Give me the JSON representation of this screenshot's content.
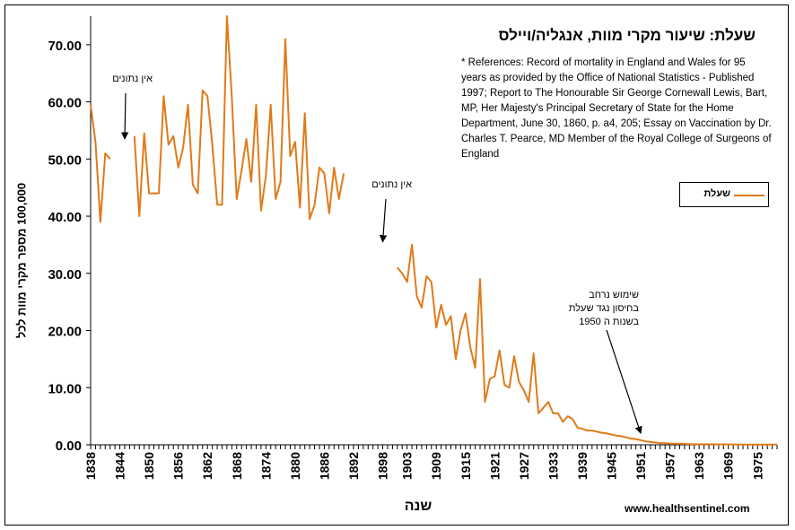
{
  "chart_data": {
    "type": "line",
    "title": "שעלת: שיעור מקרי מוות, אנגליה/ויילס",
    "xlabel": "שנה",
    "ylabel": "100,000 מספר מקרי מוות לכל",
    "xlim": [
      1838,
      1979
    ],
    "ylim": [
      0,
      75
    ],
    "x_ticks": [
      "1838",
      "1844",
      "1850",
      "1856",
      "1862",
      "1868",
      "1874",
      "1880",
      "1886",
      "1892",
      "1898",
      "1903",
      "1909",
      "1915",
      "1921",
      "1927",
      "1933",
      "1939",
      "1945",
      "1951",
      "1957",
      "1963",
      "1969",
      "1975"
    ],
    "y_ticks": [
      "0.00",
      "10.00",
      "20.00",
      "30.00",
      "40.00",
      "50.00",
      "60.00",
      "70.00"
    ],
    "grid": false,
    "legend": "right",
    "series": [
      {
        "name": "שעלת",
        "color": "#e07a1a",
        "segments": [
          [
            [
              1838,
              59.5
            ],
            [
              1839,
              53.0
            ],
            [
              1840,
              39.0
            ],
            [
              1841,
              51.0
            ],
            [
              1842,
              50.0
            ]
          ],
          [
            [
              1847,
              54.0
            ],
            [
              1848,
              40.0
            ],
            [
              1849,
              54.5
            ],
            [
              1850,
              44.0
            ],
            [
              1851,
              44.0
            ],
            [
              1852,
              44.0
            ],
            [
              1853,
              61.0
            ],
            [
              1854,
              52.5
            ],
            [
              1855,
              54.0
            ],
            [
              1856,
              48.5
            ],
            [
              1857,
              52.0
            ],
            [
              1858,
              59.5
            ],
            [
              1859,
              45.5
            ],
            [
              1860,
              44.0
            ],
            [
              1861,
              62.0
            ],
            [
              1862,
              61.0
            ],
            [
              1863,
              52.5
            ],
            [
              1864,
              42.0
            ],
            [
              1865,
              42.0
            ],
            [
              1866,
              75.0
            ],
            [
              1867,
              61.0
            ],
            [
              1868,
              43.0
            ],
            [
              1869,
              48.0
            ],
            [
              1870,
              53.5
            ],
            [
              1871,
              46.0
            ],
            [
              1872,
              59.5
            ],
            [
              1873,
              41.0
            ],
            [
              1874,
              47.0
            ],
            [
              1875,
              59.5
            ],
            [
              1876,
              43.0
            ],
            [
              1877,
              46.0
            ],
            [
              1878,
              71.0
            ],
            [
              1879,
              50.5
            ],
            [
              1880,
              53.0
            ],
            [
              1881,
              41.5
            ],
            [
              1882,
              58.0
            ],
            [
              1883,
              39.5
            ],
            [
              1884,
              42.0
            ],
            [
              1885,
              48.5
            ],
            [
              1886,
              47.5
            ],
            [
              1887,
              40.5
            ],
            [
              1888,
              48.5
            ],
            [
              1889,
              43.0
            ],
            [
              1890,
              47.5
            ]
          ],
          [
            [
              1901,
              31.0
            ],
            [
              1902,
              30.0
            ],
            [
              1903,
              28.5
            ],
            [
              1904,
              35.0
            ],
            [
              1905,
              26.0
            ],
            [
              1906,
              24.0
            ],
            [
              1907,
              29.5
            ],
            [
              1908,
              28.5
            ],
            [
              1909,
              20.5
            ],
            [
              1910,
              24.5
            ],
            [
              1911,
              21.0
            ],
            [
              1912,
              22.5
            ],
            [
              1913,
              15.0
            ],
            [
              1914,
              20.0
            ],
            [
              1915,
              23.0
            ],
            [
              1916,
              17.0
            ],
            [
              1917,
              13.5
            ],
            [
              1918,
              29.0
            ],
            [
              1919,
              7.5
            ],
            [
              1920,
              11.5
            ],
            [
              1921,
              12.0
            ],
            [
              1922,
              16.5
            ],
            [
              1923,
              10.5
            ],
            [
              1924,
              10.0
            ],
            [
              1925,
              15.5
            ],
            [
              1926,
              11.0
            ],
            [
              1927,
              9.5
            ],
            [
              1928,
              7.5
            ],
            [
              1929,
              16.0
            ],
            [
              1930,
              5.5
            ],
            [
              1931,
              6.5
            ],
            [
              1932,
              7.5
            ],
            [
              1933,
              5.5
            ],
            [
              1934,
              5.5
            ],
            [
              1935,
              4.0
            ],
            [
              1936,
              5.0
            ],
            [
              1937,
              4.5
            ],
            [
              1938,
              3.0
            ],
            [
              1939,
              2.8
            ],
            [
              1940,
              2.5
            ],
            [
              1941,
              2.5
            ],
            [
              1942,
              2.3
            ],
            [
              1943,
              2.1
            ],
            [
              1944,
              2.0
            ],
            [
              1945,
              1.8
            ],
            [
              1946,
              1.6
            ],
            [
              1947,
              1.5
            ],
            [
              1948,
              1.3
            ],
            [
              1949,
              1.1
            ],
            [
              1950,
              1.0
            ],
            [
              1951,
              0.8
            ],
            [
              1952,
              0.6
            ],
            [
              1953,
              0.5
            ],
            [
              1954,
              0.4
            ],
            [
              1955,
              0.3
            ],
            [
              1956,
              0.3
            ],
            [
              1957,
              0.2
            ],
            [
              1958,
              0.2
            ],
            [
              1959,
              0.2
            ],
            [
              1960,
              0.15
            ],
            [
              1961,
              0.12
            ],
            [
              1962,
              0.1
            ],
            [
              1963,
              0.1
            ],
            [
              1965,
              0.1
            ],
            [
              1967,
              0.08
            ],
            [
              1970,
              0.06
            ],
            [
              1973,
              0.05
            ],
            [
              1976,
              0.04
            ],
            [
              1979,
              0.03
            ]
          ]
        ]
      }
    ],
    "annotations": [
      {
        "id": "ann1",
        "text": "אין נתונים",
        "target": [
          1845,
          53.5
        ]
      },
      {
        "id": "ann2",
        "text": "אין נתונים",
        "target": [
          1898,
          35.5
        ]
      },
      {
        "id": "ann3",
        "text": "שימוש נרחב בחיסון נגד שעלת בשנות ה 1950",
        "lines": [
          "שימוש נרחב",
          "בחיסון נגד שעלת",
          "בשנות ה 1950"
        ],
        "target": [
          1951,
          2.0
        ]
      }
    ],
    "references": "* References: Record of mortality in England and Wales for 95 years as provided by the Office of National Statistics - Published 1997; Report to The Honourable Sir George Cornewall Lewis, Bart, MP, Her Majesty's Principal Secretary of State for the Home Department, June 30, 1860, p. a4, 205; Essay on Vaccination by Dr. Charles T. Pearce, MD Member of the Royal College of Surgeons of England",
    "source": "www.healthsentinel.com"
  }
}
